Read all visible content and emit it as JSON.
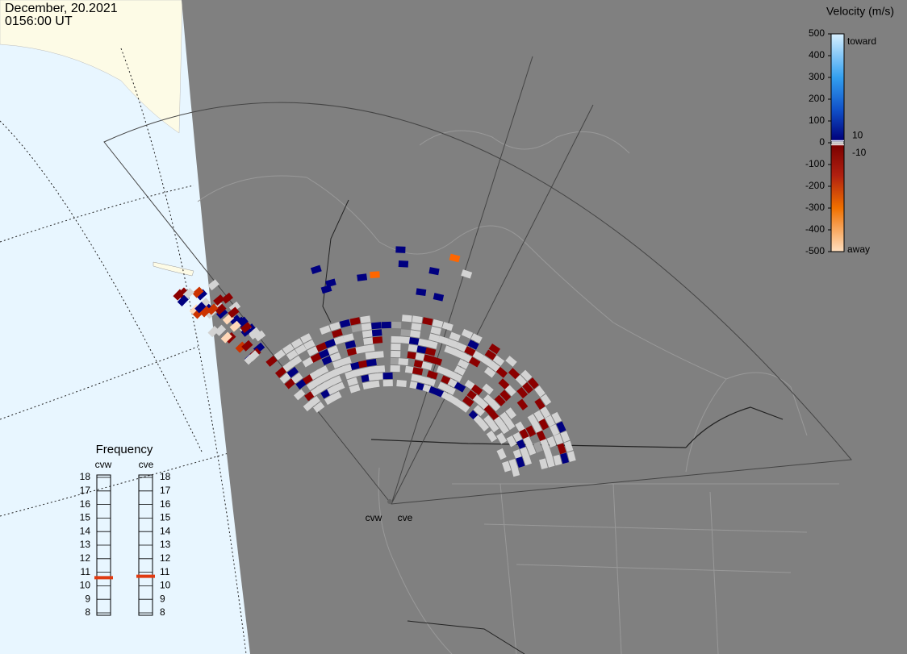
{
  "header": {
    "date": "December, 20.2021",
    "time": "0156:00 UT"
  },
  "velocity_scale": {
    "title": "Velocity (m/s)",
    "ylim": [
      -500,
      500
    ],
    "ticks": [
      500,
      400,
      300,
      200,
      100,
      0,
      -100,
      -200,
      -300,
      -400,
      -500
    ],
    "inner_ticks": [
      10,
      -10
    ],
    "toward": "toward",
    "away": "away"
  },
  "frequency": {
    "title": "Frequency",
    "ylim": [
      8,
      18
    ],
    "ticks": [
      18,
      17,
      16,
      15,
      14,
      13,
      12,
      11,
      10,
      9,
      8
    ],
    "radars": [
      {
        "name": "cvw",
        "value": 10.6
      },
      {
        "name": "cve",
        "value": 10.7
      }
    ]
  }
}
